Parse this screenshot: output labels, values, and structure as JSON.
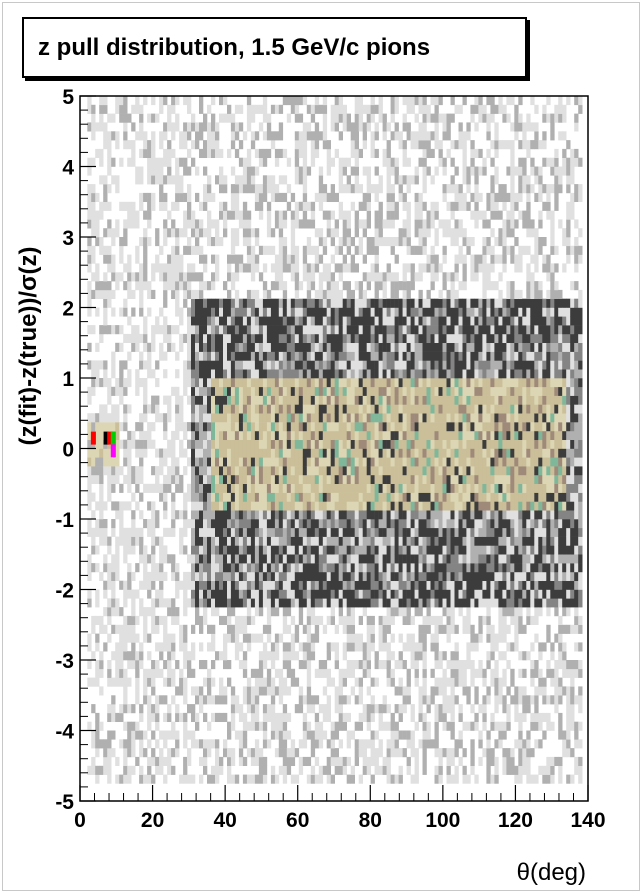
{
  "title": "z pull distribution, 1.5 GeV/c pions",
  "chart_data": {
    "type": "heatmap",
    "title": "z pull distribution, 1.5 GeV/c pions",
    "xlabel": "θ(deg)",
    "ylabel": "(z(fit)-z(true))/σ(z)",
    "xlim": [
      0,
      140
    ],
    "ylim": [
      -5,
      5
    ],
    "x_bin_width": 1.1,
    "y_bin_width": 0.125,
    "x_ticks": [
      0,
      20,
      40,
      60,
      80,
      100,
      120,
      140
    ],
    "y_ticks": [
      -5,
      -4,
      -3,
      -2,
      -1,
      0,
      1,
      2,
      3,
      4,
      5
    ],
    "palette": [
      "#ffffff",
      "#e0e0e0",
      "#b0b0b0",
      "#848484",
      "#3c3c3c",
      "#cabf98",
      "#dcd6b4",
      "#9f8a7a",
      "#7fb79a",
      "#ff0000",
      "#00cc00",
      "#ff00ff",
      "#000000"
    ],
    "regions": [
      {
        "x_range": [
          2,
          140
        ],
        "y_range": [
          -5,
          5
        ],
        "level": 1,
        "note": "sparse light-gray tails"
      },
      {
        "x_range": [
          30,
          138
        ],
        "y_range": [
          -2.3,
          2.0
        ],
        "level": 4,
        "note": "dark-gray shell"
      },
      {
        "x_range": [
          36,
          134
        ],
        "y_range": [
          -1.0,
          1.0
        ],
        "level": 5,
        "note": "tan core"
      },
      {
        "x_range": [
          2,
          10
        ],
        "y_range": [
          -0.5,
          0.5
        ],
        "level": 5,
        "note": "forward cluster"
      }
    ],
    "hot_bins": [
      {
        "x": 3,
        "y": 0.12,
        "color": "#ff0000"
      },
      {
        "x": 6.5,
        "y": 0.12,
        "color": "#000000"
      },
      {
        "x": 7.5,
        "y": 0.12,
        "color": "#ff0000"
      },
      {
        "x": 8.5,
        "y": 0.12,
        "color": "#00cc00"
      },
      {
        "x": 8.5,
        "y": -0.06,
        "color": "#ff00ff"
      }
    ]
  }
}
